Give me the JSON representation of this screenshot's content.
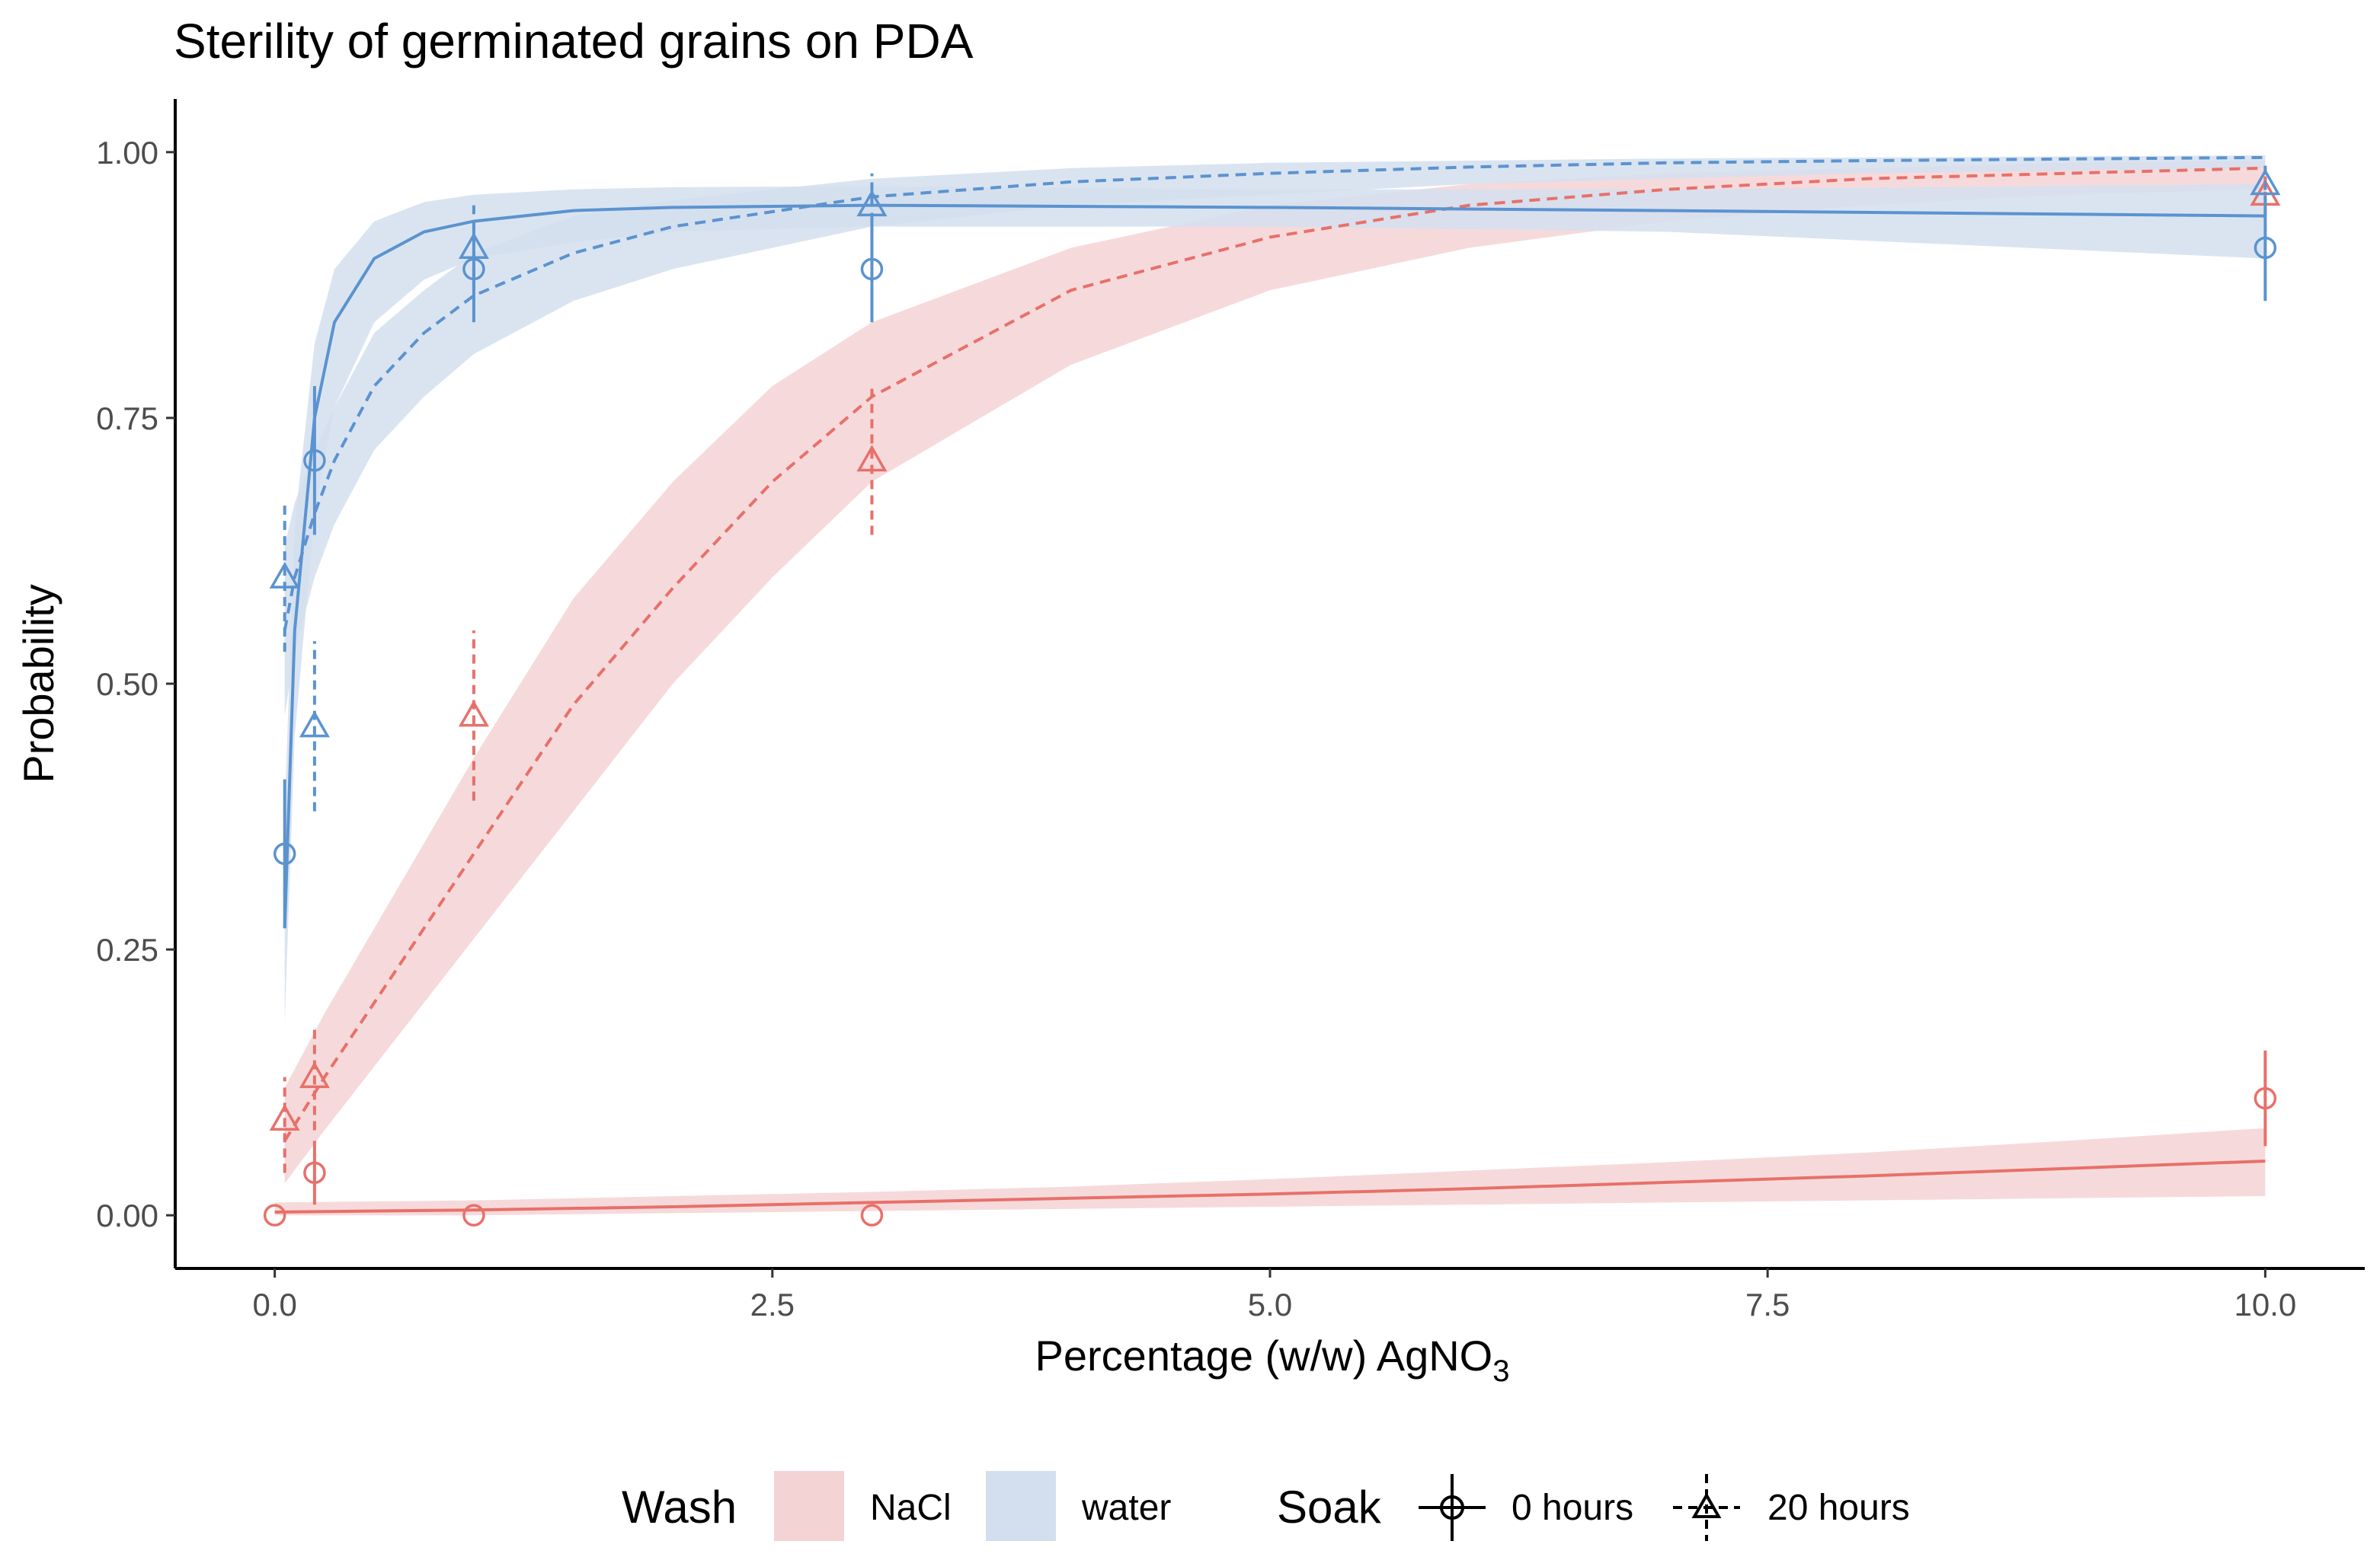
{
  "chart_data": {
    "type": "scatter",
    "title": "Sterility of germinated grains on PDA",
    "xlabel_main": "Percentage (w/w) AgNO",
    "xlabel_sub": "3",
    "ylabel": "Probability",
    "xlim": [
      -0.5,
      10.5
    ],
    "ylim": [
      -0.05,
      1.05
    ],
    "xticks": [
      0.0,
      2.5,
      5.0,
      7.5,
      10.0
    ],
    "xtick_labels": [
      "0.0",
      "2.5",
      "5.0",
      "7.5",
      "10.0"
    ],
    "yticks": [
      0.0,
      0.25,
      0.5,
      0.75,
      1.0
    ],
    "ytick_labels": [
      "0.00",
      "0.25",
      "0.50",
      "0.75",
      "1.00"
    ],
    "colors": {
      "NaCl": "#E8706A",
      "water": "#5B93CF",
      "NaCl_fill": "#F4D3D5",
      "water_fill": "#D3DFEE",
      "axis": "#000000",
      "tick_text": "#4D4D4D"
    },
    "legend": {
      "wash_title": "Wash",
      "wash_items": [
        "NaCl",
        "water"
      ],
      "soak_title": "Soak",
      "soak_items": [
        "0 hours",
        "20 hours"
      ]
    },
    "points": [
      {
        "wash": "NaCl",
        "soak": "0 hours",
        "x": 0.0,
        "y": 0.0,
        "lo": 0.0,
        "hi": 0.0
      },
      {
        "wash": "NaCl",
        "soak": "0 hours",
        "x": 0.2,
        "y": 0.04,
        "lo": 0.01,
        "hi": 0.07
      },
      {
        "wash": "NaCl",
        "soak": "0 hours",
        "x": 1.0,
        "y": 0.0,
        "lo": 0.0,
        "hi": 0.0
      },
      {
        "wash": "NaCl",
        "soak": "0 hours",
        "x": 3.0,
        "y": 0.0,
        "lo": 0.0,
        "hi": 0.0
      },
      {
        "wash": "NaCl",
        "soak": "0 hours",
        "x": 10.0,
        "y": 0.11,
        "lo": 0.065,
        "hi": 0.155
      },
      {
        "wash": "NaCl",
        "soak": "20 hours",
        "x": 0.05,
        "y": 0.09,
        "lo": 0.04,
        "hi": 0.13
      },
      {
        "wash": "NaCl",
        "soak": "20 hours",
        "x": 0.2,
        "y": 0.13,
        "lo": 0.08,
        "hi": 0.18
      },
      {
        "wash": "NaCl",
        "soak": "20 hours",
        "x": 1.0,
        "y": 0.47,
        "lo": 0.39,
        "hi": 0.55
      },
      {
        "wash": "NaCl",
        "soak": "20 hours",
        "x": 3.0,
        "y": 0.71,
        "lo": 0.64,
        "hi": 0.78
      },
      {
        "wash": "NaCl",
        "soak": "20 hours",
        "x": 10.0,
        "y": 0.96,
        "lo": 0.94,
        "hi": 0.98
      },
      {
        "wash": "water",
        "soak": "0 hours",
        "x": 0.05,
        "y": 0.34,
        "lo": 0.27,
        "hi": 0.41
      },
      {
        "wash": "water",
        "soak": "0 hours",
        "x": 0.2,
        "y": 0.71,
        "lo": 0.64,
        "hi": 0.78
      },
      {
        "wash": "water",
        "soak": "0 hours",
        "x": 1.0,
        "y": 0.89,
        "lo": 0.84,
        "hi": 0.93
      },
      {
        "wash": "water",
        "soak": "0 hours",
        "x": 3.0,
        "y": 0.89,
        "lo": 0.84,
        "hi": 0.94
      },
      {
        "wash": "water",
        "soak": "0 hours",
        "x": 10.0,
        "y": 0.91,
        "lo": 0.86,
        "hi": 0.95
      },
      {
        "wash": "water",
        "soak": "20 hours",
        "x": 0.05,
        "y": 0.6,
        "lo": 0.53,
        "hi": 0.67
      },
      {
        "wash": "water",
        "soak": "20 hours",
        "x": 0.2,
        "y": 0.46,
        "lo": 0.38,
        "hi": 0.54
      },
      {
        "wash": "water",
        "soak": "20 hours",
        "x": 1.0,
        "y": 0.91,
        "lo": 0.87,
        "hi": 0.95
      },
      {
        "wash": "water",
        "soak": "20 hours",
        "x": 3.0,
        "y": 0.95,
        "lo": 0.92,
        "hi": 0.98
      },
      {
        "wash": "water",
        "soak": "20 hours",
        "x": 10.0,
        "y": 0.97,
        "lo": 0.95,
        "hi": 0.99
      }
    ],
    "fits": [
      {
        "wash": "NaCl",
        "soak": "0 hours",
        "x": [
          0,
          1,
          2,
          3,
          4,
          5,
          6,
          7,
          8,
          9,
          10
        ],
        "y": [
          0.003,
          0.005,
          0.008,
          0.012,
          0.016,
          0.02,
          0.025,
          0.031,
          0.037,
          0.044,
          0.051
        ],
        "lo": [
          0.0,
          0.0,
          0.002,
          0.004,
          0.006,
          0.008,
          0.01,
          0.012,
          0.014,
          0.016,
          0.018
        ],
        "hi": [
          0.012,
          0.014,
          0.018,
          0.022,
          0.027,
          0.034,
          0.042,
          0.05,
          0.059,
          0.07,
          0.082
        ]
      },
      {
        "wash": "NaCl",
        "soak": "20 hours",
        "x": [
          0.05,
          0.25,
          0.5,
          0.75,
          1.0,
          1.5,
          2.0,
          2.5,
          3.0,
          4.0,
          5.0,
          6.0,
          7.0,
          8.0,
          9.0,
          10.0
        ],
        "y": [
          0.07,
          0.13,
          0.2,
          0.27,
          0.34,
          0.48,
          0.59,
          0.69,
          0.77,
          0.87,
          0.92,
          0.95,
          0.965,
          0.975,
          0.98,
          0.985
        ],
        "lo": [
          0.03,
          0.08,
          0.14,
          0.2,
          0.26,
          0.38,
          0.5,
          0.6,
          0.69,
          0.8,
          0.87,
          0.91,
          0.935,
          0.95,
          0.96,
          0.965
        ],
        "hi": [
          0.12,
          0.19,
          0.27,
          0.35,
          0.43,
          0.58,
          0.69,
          0.78,
          0.84,
          0.91,
          0.95,
          0.97,
          0.98,
          0.985,
          0.99,
          0.992
        ]
      },
      {
        "wash": "water",
        "soak": "0 hours",
        "x": [
          0.05,
          0.1,
          0.2,
          0.3,
          0.5,
          0.75,
          1.0,
          1.5,
          2.0,
          3.0,
          5.0,
          7.0,
          10.0
        ],
        "y": [
          0.27,
          0.55,
          0.75,
          0.84,
          0.9,
          0.925,
          0.935,
          0.945,
          0.948,
          0.95,
          0.948,
          0.945,
          0.94
        ],
        "lo": [
          0.18,
          0.45,
          0.66,
          0.76,
          0.84,
          0.88,
          0.9,
          0.915,
          0.925,
          0.93,
          0.93,
          0.925,
          0.9
        ],
        "hi": [
          0.38,
          0.65,
          0.82,
          0.89,
          0.935,
          0.953,
          0.96,
          0.965,
          0.967,
          0.968,
          0.965,
          0.965,
          0.97
        ]
      },
      {
        "wash": "water",
        "soak": "20 hours",
        "x": [
          0.05,
          0.1,
          0.2,
          0.3,
          0.5,
          0.75,
          1.0,
          1.5,
          2.0,
          3.0,
          4.0,
          5.0,
          6.0,
          7.0,
          8.0,
          10.0
        ],
        "y": [
          0.55,
          0.6,
          0.66,
          0.71,
          0.78,
          0.83,
          0.865,
          0.905,
          0.93,
          0.958,
          0.972,
          0.98,
          0.986,
          0.99,
          0.992,
          0.995
        ],
        "lo": [
          0.47,
          0.53,
          0.6,
          0.65,
          0.72,
          0.77,
          0.81,
          0.86,
          0.89,
          0.93,
          0.95,
          0.96,
          0.97,
          0.975,
          0.98,
          0.985
        ],
        "hi": [
          0.63,
          0.67,
          0.72,
          0.76,
          0.83,
          0.87,
          0.905,
          0.94,
          0.955,
          0.975,
          0.985,
          0.99,
          0.992,
          0.994,
          0.995,
          0.997
        ]
      }
    ]
  }
}
